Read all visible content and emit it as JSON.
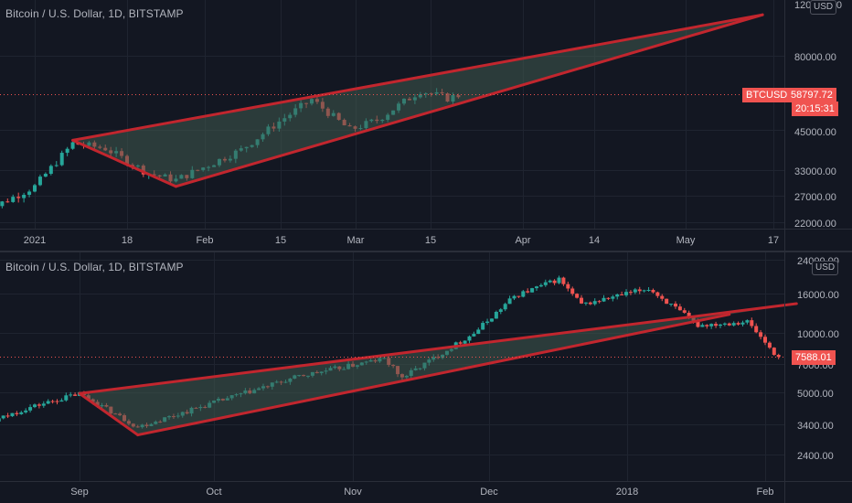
{
  "top_chart": {
    "title": "Bitcoin / U.S. Dollar, 1D, BITSTAMP",
    "currency": "USD",
    "symbol": "BTCUSD",
    "last_price": "58797.72",
    "countdown": "20:15:31",
    "y_ticks": [
      "120000.00",
      "80000.00",
      "45000.00",
      "33000.00",
      "27000.00",
      "22000.00"
    ],
    "x_ticks": [
      "2021",
      "18",
      "Feb",
      "15",
      "Mar",
      "15",
      "Apr",
      "14",
      "May",
      "17"
    ]
  },
  "bottom_chart": {
    "title": "Bitcoin / U.S. Dollar, 1D, BITSTAMP",
    "currency": "USD",
    "last_price": "7588.01",
    "y_ticks": [
      "24000.00",
      "16000.00",
      "10000.00",
      "7000.00",
      "5000.00",
      "3400.00",
      "2400.00"
    ],
    "x_ticks": [
      "Sep",
      "Oct",
      "Nov",
      "Dec",
      "2018",
      "Feb"
    ]
  },
  "colors": {
    "background": "#131722",
    "up": "#26a69a",
    "down": "#ef5350",
    "wedge_line": "#c2262e",
    "wedge_fill": "#3f5a4f",
    "price_tag": "#f05350",
    "grid": "#1f2430"
  },
  "chart_data": [
    {
      "type": "candlestick",
      "title": "Bitcoin / U.S. Dollar, 1D, BITSTAMP",
      "y_scale": "log",
      "x_range": [
        "2020-12-22",
        "2021-05-20"
      ],
      "ylim": [
        20000,
        125000
      ],
      "last_price": 58797.72,
      "approx_close_path": [
        {
          "date": "2020-12-22",
          "close": 23500
        },
        {
          "date": "2021-01-01",
          "close": 29000
        },
        {
          "date": "2021-01-08",
          "close": 40500
        },
        {
          "date": "2021-01-14",
          "close": 39000
        },
        {
          "date": "2021-01-22",
          "close": 32000
        },
        {
          "date": "2021-01-27",
          "close": 30500
        },
        {
          "date": "2021-02-08",
          "close": 38500
        },
        {
          "date": "2021-02-15",
          "close": 48000
        },
        {
          "date": "2021-02-21",
          "close": 57000
        },
        {
          "date": "2021-02-28",
          "close": 45000
        },
        {
          "date": "2021-03-05",
          "close": 48500
        },
        {
          "date": "2021-03-13",
          "close": 61000
        },
        {
          "date": "2021-03-18",
          "close": 57500
        },
        {
          "date": "2021-03-20",
          "close": 58797.72
        }
      ],
      "wedge_lines": [
        {
          "from": {
            "date": "2021-01-08",
            "value": 41500
          },
          "to": {
            "date": "2021-05-15",
            "value": 110000
          }
        },
        {
          "from": {
            "date": "2021-01-08",
            "value": 41500
          },
          "to": {
            "date": "2021-01-27",
            "value": 29000
          }
        },
        {
          "from": {
            "date": "2021-01-27",
            "value": 29000
          },
          "to": {
            "date": "2021-05-15",
            "value": 110000
          }
        }
      ]
    },
    {
      "type": "candlestick",
      "title": "Bitcoin / U.S. Dollar, 1D, BITSTAMP",
      "y_scale": "log",
      "x_range": [
        "2017-08-01",
        "2018-02-08"
      ],
      "ylim": [
        2000,
        24000
      ],
      "last_price": 7588.01,
      "approx_close_path": [
        {
          "date": "2017-08-01",
          "close": 2750
        },
        {
          "date": "2017-08-20",
          "close": 4100
        },
        {
          "date": "2017-09-01",
          "close": 4900
        },
        {
          "date": "2017-09-14",
          "close": 3300
        },
        {
          "date": "2017-10-01",
          "close": 4400
        },
        {
          "date": "2017-10-20",
          "close": 6000
        },
        {
          "date": "2017-11-08",
          "close": 7400
        },
        {
          "date": "2017-11-12",
          "close": 5900
        },
        {
          "date": "2017-11-28",
          "close": 10000
        },
        {
          "date": "2017-12-07",
          "close": 15500
        },
        {
          "date": "2017-12-17",
          "close": 19000
        },
        {
          "date": "2017-12-22",
          "close": 14000
        },
        {
          "date": "2018-01-06",
          "close": 17000
        },
        {
          "date": "2018-01-17",
          "close": 11000
        },
        {
          "date": "2018-01-28",
          "close": 11500
        },
        {
          "date": "2018-02-05",
          "close": 7000
        },
        {
          "date": "2018-02-08",
          "close": 7588.01
        }
      ],
      "wedge_lines": [
        {
          "from": {
            "date": "2017-09-01",
            "value": 4900
          },
          "to": {
            "date": "2018-02-08",
            "value": 14200
          }
        },
        {
          "from": {
            "date": "2017-09-01",
            "value": 4900
          },
          "to": {
            "date": "2017-09-14",
            "value": 3000
          }
        },
        {
          "from": {
            "date": "2017-09-14",
            "value": 3000
          },
          "to": {
            "date": "2018-01-24",
            "value": 12500
          }
        }
      ]
    }
  ]
}
